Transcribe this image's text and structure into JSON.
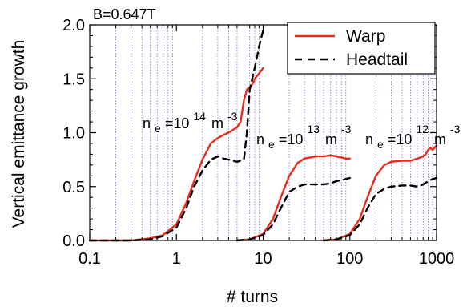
{
  "chart_data": {
    "type": "line",
    "xscale": "log",
    "xlim": [
      0.1,
      1000
    ],
    "ylim": [
      0,
      2.0
    ],
    "xlabel": "# turns",
    "ylabel": "Vertical emittance growth",
    "x_ticks": [
      "0.1",
      "1",
      "10",
      "100",
      "1000"
    ],
    "y_ticks": [
      "0.0",
      "0.5",
      "1.0",
      "1.5",
      "2.0"
    ],
    "grid": "vertical minor lines (dotted blue)",
    "legend_position": "top-right",
    "legend": [
      "Warp",
      "Headtail"
    ],
    "annotations": {
      "field": "B=0.647T",
      "density_prefix": "n",
      "density_sub": "e",
      "density_eq": "=10",
      "exp_14": "14",
      "exp_13": "13",
      "exp_12": "12",
      "unit": "m",
      "unit_exp": "-3"
    },
    "series": [
      {
        "name": "Warp",
        "group": "ne=10^14 m^-3",
        "color": "#ee2a1b",
        "style": "solid",
        "x": [
          0.1,
          0.3,
          0.5,
          0.7,
          1.0,
          1.3,
          1.6,
          2.0,
          2.5,
          3.0,
          3.5,
          4.0,
          5.0,
          5.5,
          6.0,
          6.5,
          7.0,
          7.5,
          8.0,
          9.0,
          10.0
        ],
        "y": [
          0.0,
          0.0,
          0.02,
          0.05,
          0.15,
          0.35,
          0.55,
          0.75,
          0.9,
          0.95,
          0.98,
          1.0,
          1.05,
          1.1,
          1.3,
          1.4,
          1.42,
          1.45,
          1.5,
          1.55,
          1.6
        ]
      },
      {
        "name": "Headtail",
        "group": "ne=10^14 m^-3",
        "color": "#000000",
        "style": "dashed",
        "x": [
          0.1,
          0.3,
          0.5,
          0.7,
          1.0,
          1.3,
          1.6,
          2.0,
          2.5,
          3.0,
          3.5,
          4.0,
          5.0,
          6.0,
          6.5,
          7.0,
          8.0,
          9.0,
          10.0
        ],
        "y": [
          0.0,
          0.0,
          0.01,
          0.04,
          0.12,
          0.3,
          0.5,
          0.65,
          0.75,
          0.78,
          0.76,
          0.75,
          0.73,
          0.75,
          1.0,
          1.4,
          1.6,
          1.8,
          1.95
        ]
      },
      {
        "name": "Warp",
        "group": "ne=10^13 m^-3",
        "color": "#ee2a1b",
        "style": "solid",
        "x": [
          5,
          7,
          10,
          13,
          16,
          20,
          25,
          30,
          40,
          50,
          60,
          70,
          80,
          90,
          100
        ],
        "y": [
          0.0,
          0.01,
          0.06,
          0.2,
          0.4,
          0.6,
          0.72,
          0.76,
          0.78,
          0.78,
          0.79,
          0.78,
          0.77,
          0.76,
          0.76
        ]
      },
      {
        "name": "Headtail",
        "group": "ne=10^13 m^-3",
        "color": "#000000",
        "style": "dashed",
        "x": [
          5,
          7,
          10,
          13,
          16,
          20,
          25,
          30,
          40,
          50,
          60,
          70,
          80,
          90,
          100
        ],
        "y": [
          0.0,
          0.01,
          0.05,
          0.15,
          0.3,
          0.45,
          0.5,
          0.52,
          0.52,
          0.52,
          0.53,
          0.55,
          0.56,
          0.57,
          0.58
        ]
      },
      {
        "name": "Warp",
        "group": "ne=10^12 m^-3",
        "color": "#ee2a1b",
        "style": "solid",
        "x": [
          50,
          70,
          100,
          130,
          160,
          200,
          250,
          300,
          400,
          500,
          600,
          700,
          750,
          800,
          850,
          900,
          1000
        ],
        "y": [
          0.0,
          0.01,
          0.06,
          0.2,
          0.4,
          0.6,
          0.7,
          0.73,
          0.74,
          0.74,
          0.76,
          0.78,
          0.8,
          0.84,
          0.86,
          0.84,
          0.88
        ]
      },
      {
        "name": "Headtail",
        "group": "ne=10^12 m^-3",
        "color": "#000000",
        "style": "dashed",
        "x": [
          50,
          70,
          100,
          130,
          160,
          200,
          250,
          300,
          400,
          500,
          600,
          700,
          800,
          900,
          1000
        ],
        "y": [
          0.0,
          0.01,
          0.05,
          0.15,
          0.3,
          0.43,
          0.48,
          0.5,
          0.51,
          0.51,
          0.5,
          0.52,
          0.55,
          0.57,
          0.58
        ]
      }
    ]
  }
}
